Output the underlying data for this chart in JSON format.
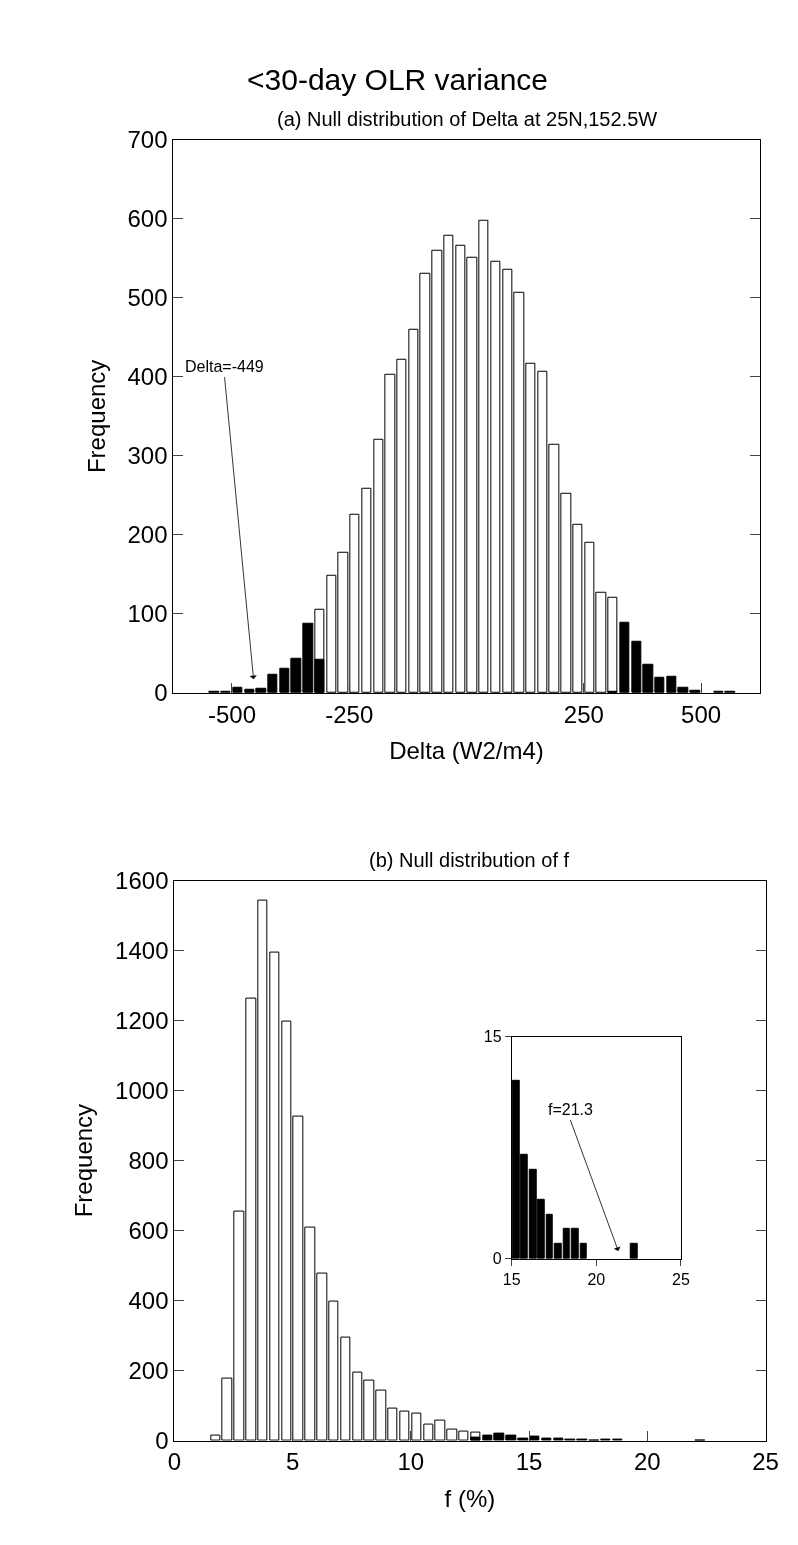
{
  "chart_data": [
    {
      "type": "histogram",
      "title": "<30-day OLR variance",
      "subtitle": "(a) Null distribution of Delta at 25N,152.5W",
      "xlabel": "Delta (W2/m4)",
      "ylabel": "Frequency",
      "bins": [
        -625,
        -600,
        -575,
        -550,
        -525,
        -500,
        -475,
        -450,
        -425,
        -400,
        -375,
        -350,
        -325,
        -300,
        -275,
        -250,
        -225,
        -200,
        -175,
        -150,
        -125,
        -100,
        -75,
        -50,
        -25,
        0,
        25,
        50,
        75,
        100,
        125,
        150,
        175,
        200,
        225,
        250,
        275,
        300,
        325,
        350,
        375,
        400,
        425,
        450,
        475,
        500,
        525,
        550,
        575,
        600,
        625
      ],
      "series": [
        {
          "color": "#ffffff",
          "values": [
            null,
            null,
            null,
            null,
            null,
            null,
            null,
            null,
            null,
            null,
            null,
            null,
            105,
            148,
            177,
            225,
            258,
            321,
            403,
            422,
            460,
            530,
            559,
            578,
            566,
            551,
            597,
            545,
            536,
            506,
            416,
            407,
            314,
            252,
            213,
            190,
            127,
            121,
            null,
            null,
            null,
            null,
            null,
            null,
            null,
            null,
            null,
            null,
            null,
            null
          ]
        },
        {
          "color": "#000000",
          "values": [
            null,
            null,
            null,
            1,
            2,
            6,
            4,
            5,
            23,
            31,
            43,
            87,
            42,
            null,
            null,
            null,
            null,
            null,
            null,
            null,
            null,
            null,
            null,
            null,
            null,
            null,
            null,
            null,
            null,
            null,
            null,
            null,
            null,
            null,
            null,
            null,
            null,
            1,
            89,
            65,
            36,
            19,
            20,
            6,
            3,
            null,
            1,
            1,
            null,
            null
          ]
        }
      ],
      "xlim": [
        -625,
        625
      ],
      "xticks": [
        -500,
        -250,
        250,
        500
      ],
      "ylim": [
        0,
        700
      ],
      "yticks": [
        0,
        100,
        200,
        300,
        400,
        500,
        600,
        700
      ],
      "annotations": [
        "Delta=-449"
      ]
    },
    {
      "type": "histogram",
      "title": "(b) Null distribution of f",
      "xlabel": "f (%)",
      "ylabel": "Frequency",
      "bins": [
        0,
        0.5,
        1,
        1.5,
        2,
        2.5,
        3,
        3.5,
        4,
        4.5,
        5,
        5.5,
        6,
        6.5,
        7,
        7.5,
        8,
        8.5,
        9,
        9.5,
        10,
        10.5,
        11,
        11.5,
        12,
        12.5,
        13,
        13.5,
        14,
        14.5,
        15,
        15.5,
        16,
        16.5,
        17,
        17.5,
        18,
        18.5,
        19,
        19.5,
        20,
        20.5,
        21,
        21.5,
        22,
        22.5,
        23,
        23.5,
        24,
        24.5,
        25
      ],
      "series": [
        {
          "color": "#ffffff",
          "values": [
            null,
            null,
            null,
            13,
            176,
            655,
            1263,
            1542,
            1393,
            1196,
            927,
            609,
            478,
            398,
            295,
            195,
            172,
            142,
            92,
            84,
            76,
            47,
            58,
            32,
            27,
            22,
            null,
            null,
            null,
            null,
            null,
            null,
            null,
            null,
            null,
            null,
            null,
            null,
            null,
            null,
            null,
            null,
            null,
            null,
            null,
            null,
            null,
            null,
            null,
            null
          ]
        },
        {
          "color": "#000000",
          "values": [
            null,
            null,
            null,
            null,
            null,
            null,
            null,
            null,
            null,
            null,
            null,
            null,
            null,
            null,
            null,
            null,
            null,
            null,
            null,
            null,
            null,
            null,
            null,
            null,
            null,
            10,
            13,
            20,
            15,
            7,
            12,
            7,
            6,
            4,
            3,
            1,
            2,
            2,
            null,
            null,
            null,
            null,
            null,
            null,
            1,
            null,
            null,
            null,
            null,
            null
          ]
        }
      ],
      "xlim": [
        0,
        25
      ],
      "xticks": [
        0,
        5,
        10,
        15,
        20,
        25
      ],
      "ylim": [
        0,
        1600
      ],
      "yticks": [
        0,
        200,
        400,
        600,
        800,
        1000,
        1200,
        1400,
        1600
      ]
    },
    {
      "type": "histogram",
      "bins": [
        15,
        15.5,
        16,
        16.5,
        17,
        17.5,
        18,
        18.5,
        19,
        19.5,
        20,
        20.5,
        21,
        21.5,
        22,
        22.5,
        23,
        23.5,
        24,
        24.5,
        25
      ],
      "series": [
        {
          "color": "#000000",
          "values": [
            12,
            7,
            6,
            4,
            3,
            1,
            2,
            2,
            1,
            null,
            null,
            null,
            null,
            null,
            1,
            null,
            null,
            null,
            null,
            null
          ]
        }
      ],
      "xlim": [
        15,
        25
      ],
      "xticks": [
        15,
        20,
        25
      ],
      "ylim": [
        0,
        15
      ],
      "yticks": [
        0,
        15
      ],
      "annotations": [
        "f=21.3"
      ]
    }
  ]
}
